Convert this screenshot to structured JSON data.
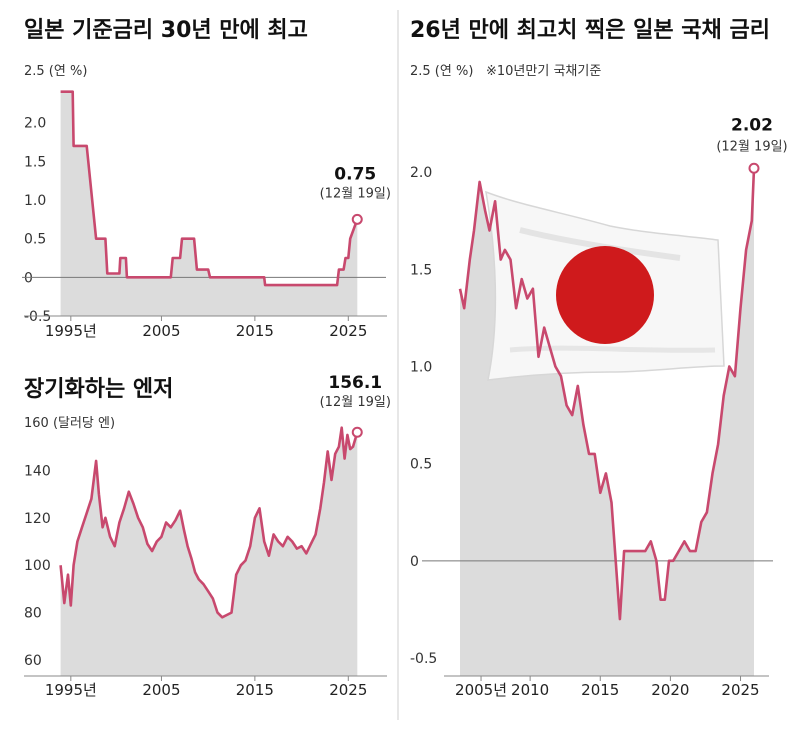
{
  "chart_data": [
    {
      "type": "area",
      "title": "일본 기준금리 30년 만에 최고",
      "unit_label": "2.5 (연 %)",
      "y_ticks": [
        "2.5",
        "2.0",
        "1.5",
        "1.0",
        "0.5",
        "0",
        "-0.5"
      ],
      "ylim": [
        -0.5,
        2.5
      ],
      "x_ticks": [
        "1995년",
        "2005",
        "2015",
        "2025"
      ],
      "xlim": [
        1992,
        2030
      ],
      "x": [
        1994.2,
        1995.5,
        1995.6,
        1997.0,
        1998.0,
        1999.0,
        1999.2,
        2000.5,
        2000.6,
        2001.2,
        2001.3,
        2006.0,
        2006.2,
        2007.0,
        2007.2,
        2008.5,
        2008.8,
        2010.0,
        2010.2,
        2016.0,
        2016.1,
        2023.8,
        2024.0,
        2024.5,
        2024.7,
        2025.0,
        2025.2,
        2025.96
      ],
      "values": [
        2.4,
        2.4,
        1.7,
        1.7,
        0.5,
        0.5,
        0.05,
        0.05,
        0.25,
        0.25,
        0.0,
        0.0,
        0.25,
        0.25,
        0.5,
        0.5,
        0.1,
        0.1,
        0.0,
        0.0,
        -0.1,
        -0.1,
        0.1,
        0.1,
        0.25,
        0.25,
        0.5,
        0.75
      ],
      "callout_value": "0.75",
      "callout_date": "(12월 19일)"
    },
    {
      "type": "area",
      "title": "장기화하는 엔저",
      "unit_label": "160 (달러당 엔)",
      "y_ticks": [
        "160",
        "140",
        "120",
        "100",
        "80",
        "60"
      ],
      "ylim": [
        60,
        160
      ],
      "x_ticks": [
        "1995년",
        "2005",
        "2015",
        "2025"
      ],
      "xlim": [
        1992,
        2030
      ],
      "x": [
        1994.2,
        1994.6,
        1995.0,
        1995.3,
        1995.6,
        1996.0,
        1996.5,
        1997.0,
        1997.5,
        1998.0,
        1998.3,
        1998.7,
        1999.0,
        1999.5,
        2000.0,
        2000.5,
        2001.0,
        2001.5,
        2002.0,
        2002.5,
        2003.0,
        2003.5,
        2004.0,
        2004.5,
        2005.0,
        2005.5,
        2006.0,
        2006.5,
        2007.0,
        2007.4,
        2007.8,
        2008.2,
        2008.6,
        2009.0,
        2009.5,
        2010.0,
        2010.5,
        2011.0,
        2011.5,
        2012.0,
        2012.5,
        2013.0,
        2013.5,
        2014.0,
        2014.5,
        2015.0,
        2015.5,
        2016.0,
        2016.5,
        2017.0,
        2017.5,
        2018.0,
        2018.5,
        2019.0,
        2019.5,
        2020.0,
        2020.5,
        2021.0,
        2021.5,
        2022.0,
        2022.4,
        2022.8,
        2023.2,
        2023.6,
        2024.0,
        2024.3,
        2024.6,
        2024.9,
        2025.2,
        2025.5,
        2025.96
      ],
      "values": [
        100,
        84,
        96,
        83,
        100,
        110,
        116,
        122,
        128,
        144,
        130,
        116,
        120,
        112,
        108,
        118,
        124,
        131,
        126,
        120,
        116,
        109,
        106,
        110,
        112,
        118,
        116,
        119,
        123,
        115,
        108,
        103,
        97,
        94,
        92,
        89,
        86,
        80,
        78,
        79,
        80,
        96,
        100,
        102,
        108,
        120,
        124,
        110,
        104,
        113,
        110,
        108,
        112,
        110,
        107,
        108,
        105,
        109,
        113,
        124,
        135,
        148,
        136,
        147,
        150,
        158,
        145,
        155,
        149,
        150,
        156.1
      ],
      "callout_value": "156.1",
      "callout_date": "(12월 19일)"
    },
    {
      "type": "area",
      "title": "26년 만에 최고치 찍은 일본 국채 금리",
      "unit_label": "2.5 (연 %)",
      "note": "※10년만기 국채기준",
      "y_ticks": [
        "2.5",
        "2.0",
        "1.5",
        "1.0",
        "0.5",
        "0",
        "-0.5"
      ],
      "ylim": [
        -0.5,
        2.5
      ],
      "x_ticks": [
        "2005년",
        "2010",
        "2015",
        "2020",
        "2025"
      ],
      "xlim": [
        2005,
        2027.6
      ],
      "x": [
        2005.0,
        2005.3,
        2005.7,
        2006.0,
        2006.4,
        2006.8,
        2007.1,
        2007.5,
        2007.9,
        2008.2,
        2008.6,
        2009.0,
        2009.4,
        2009.8,
        2010.2,
        2010.6,
        2011.0,
        2011.4,
        2011.8,
        2012.2,
        2012.6,
        2013.0,
        2013.4,
        2013.8,
        2014.2,
        2014.6,
        2015.0,
        2015.4,
        2015.8,
        2016.1,
        2016.4,
        2016.7,
        2017.0,
        2017.4,
        2017.8,
        2018.2,
        2018.6,
        2019.0,
        2019.3,
        2019.6,
        2019.9,
        2020.2,
        2020.6,
        2021.0,
        2021.4,
        2021.8,
        2022.2,
        2022.6,
        2023.0,
        2023.4,
        2023.8,
        2024.2,
        2024.6,
        2025.0,
        2025.4,
        2025.8,
        2025.96
      ],
      "values": [
        1.4,
        1.3,
        1.55,
        1.7,
        1.95,
        1.8,
        1.7,
        1.85,
        1.55,
        1.6,
        1.55,
        1.3,
        1.45,
        1.35,
        1.4,
        1.05,
        1.2,
        1.1,
        1.0,
        0.95,
        0.8,
        0.75,
        0.9,
        0.7,
        0.55,
        0.55,
        0.35,
        0.45,
        0.3,
        0.0,
        -0.3,
        0.05,
        0.05,
        0.05,
        0.05,
        0.05,
        0.1,
        0.0,
        -0.2,
        -0.2,
        0.0,
        0.0,
        0.05,
        0.1,
        0.05,
        0.05,
        0.2,
        0.25,
        0.45,
        0.6,
        0.85,
        1.0,
        0.95,
        1.3,
        1.6,
        1.75,
        2.02
      ],
      "callout_value": "2.02",
      "callout_date": "(12월 19일)"
    }
  ],
  "colors": {
    "line": "#c8496e",
    "area": "#dcdcdc",
    "flag_red": "#cf1a1c"
  }
}
